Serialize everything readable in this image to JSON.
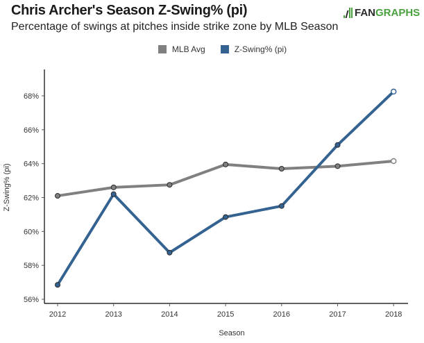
{
  "header": {
    "title": "Chris Archer's Season Z-Swing% (pi)",
    "subtitle": "Percentage of swings at pitches inside strike zone by MLB Season",
    "logo_fan": "FAN",
    "logo_graphs": "GRAPHS"
  },
  "colors": {
    "mlb_avg": "#808080",
    "z_swing": "#356391",
    "logo_green": "#4aa03f"
  },
  "chart_data": {
    "type": "line",
    "title": "Chris Archer's Season Z-Swing% (pi)",
    "subtitle": "Percentage of swings at pitches inside strike zone by MLB Season",
    "xlabel": "Season",
    "ylabel": "Z-Swing% (pi)",
    "x": [
      "2012",
      "2013",
      "2014",
      "2015",
      "2016",
      "2017",
      "2018"
    ],
    "ylim": [
      56,
      69
    ],
    "yticks": [
      56,
      58,
      60,
      62,
      64,
      66,
      68
    ],
    "ytick_labels": [
      "56%",
      "58%",
      "60%",
      "62%",
      "64%",
      "66%",
      "68%"
    ],
    "grid": false,
    "legend_position": "top-center",
    "series": [
      {
        "name": "MLB Avg",
        "color": "#808080",
        "values": [
          62.1,
          62.6,
          62.75,
          63.95,
          63.7,
          63.85,
          64.15
        ]
      },
      {
        "name": "Z-Swing% (pi)",
        "color": "#356391",
        "values": [
          56.85,
          62.2,
          58.75,
          60.85,
          61.5,
          65.1,
          68.25
        ]
      }
    ],
    "hollow_last_point": true
  }
}
